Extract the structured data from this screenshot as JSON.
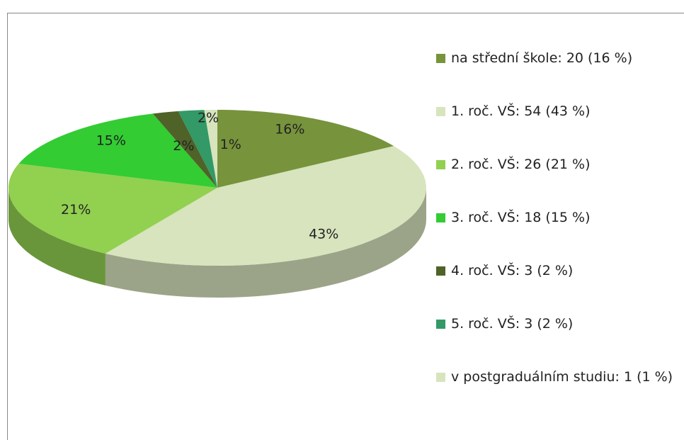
{
  "chart_data": {
    "type": "pie",
    "categories": [
      "na střední škole: 20 (16 %)",
      "1. roč. VŠ: 54 (43 %)",
      "2. roč. VŠ: 26 (21 %)",
      "3. roč. VŠ: 18 (15 %)",
      "4. roč. VŠ: 3 (2 %)",
      "5. roč. VŠ: 3 (2 %)",
      "v postgraduálním studiu: 1 (1 %)"
    ],
    "values": [
      16,
      43,
      21,
      15,
      2,
      2,
      1
    ],
    "value_labels": [
      "16%",
      "43%",
      "21%",
      "15%",
      "2%",
      "2%",
      "1%"
    ],
    "colors": [
      "#77933c",
      "#d7e4bd",
      "#92d050",
      "#33cc33",
      "#4f6228",
      "#339966",
      "#d7e4bd"
    ],
    "legend": "right"
  }
}
